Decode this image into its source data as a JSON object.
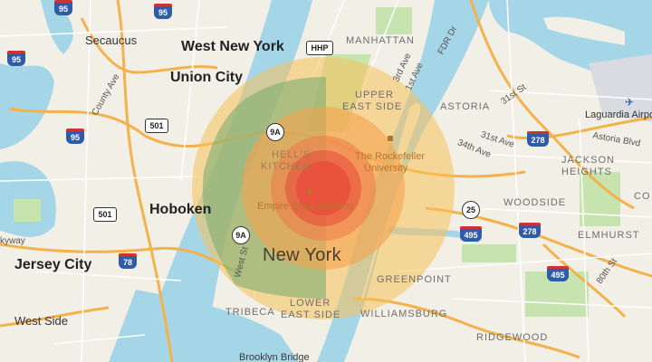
{
  "colors": {
    "water": "#a5d6e8",
    "land": "#f2efe6",
    "park": "#c6e3b0",
    "highway": "#f3b24a",
    "road": "#ffffff",
    "blast_fireball": "#e8483a",
    "blast_radiation": "#ef7a4a",
    "blast_pressure": "#f5a14f",
    "blast_thermal": "#f7c15a",
    "blast_light": "#7fae72"
  },
  "cities": [
    {
      "key": "west_new_york",
      "text": "West New York"
    },
    {
      "key": "union_city",
      "text": "Union City"
    },
    {
      "key": "hoboken",
      "text": "Hoboken"
    },
    {
      "key": "jersey_city",
      "text": "Jersey City"
    },
    {
      "key": "new_york",
      "text": "New York"
    }
  ],
  "towns": [
    {
      "key": "secaucus",
      "text": "Secaucus"
    },
    {
      "key": "west_side",
      "text": "West Side"
    },
    {
      "key": "laguardia",
      "text": "Laguardia Airport"
    }
  ],
  "neighborhoods": [
    {
      "key": "manhattan",
      "text": "MANHATTAN"
    },
    {
      "key": "upper_east_side_1",
      "text": "UPPER"
    },
    {
      "key": "upper_east_side_2",
      "text": "EAST SIDE"
    },
    {
      "key": "astoria",
      "text": "ASTORIA"
    },
    {
      "key": "jackson_heights_1",
      "text": "JACKSON"
    },
    {
      "key": "jackson_heights_2",
      "text": "HEIGHTS"
    },
    {
      "key": "woodside",
      "text": "WOODSIDE"
    },
    {
      "key": "elmhurst",
      "text": "ELMHURST"
    },
    {
      "key": "hells_kitchen_1",
      "text": "HELL'S"
    },
    {
      "key": "hells_kitchen_2",
      "text": "KITCHEN"
    },
    {
      "key": "tribeca",
      "text": "TRIBECA"
    },
    {
      "key": "lower_east_side_1",
      "text": "LOWER"
    },
    {
      "key": "lower_east_side_2",
      "text": "EAST SIDE"
    },
    {
      "key": "williamsburg",
      "text": "WILLIAMSBURG"
    },
    {
      "key": "greenpoint",
      "text": "GREENPOINT"
    },
    {
      "key": "ridgewood",
      "text": "RIDGEWOOD"
    },
    {
      "key": "corona",
      "text": "CO"
    }
  ],
  "pois": [
    {
      "key": "rockefeller_1",
      "text": "The Rockefeller"
    },
    {
      "key": "rockefeller_2",
      "text": "University"
    },
    {
      "key": "empire_state",
      "text": "Empire State Building"
    },
    {
      "key": "brooklyn_bridge",
      "text": "Brooklyn Bridge"
    }
  ],
  "roads": [
    {
      "key": "county_ave",
      "text": "County Ave"
    },
    {
      "key": "3rd_ave",
      "text": "3rd Ave"
    },
    {
      "key": "1st_ave",
      "text": "1st Ave"
    },
    {
      "key": "fdr",
      "text": "FDR Dr"
    },
    {
      "key": "31st_st",
      "text": "31st St"
    },
    {
      "key": "31st_ave",
      "text": "31st Ave"
    },
    {
      "key": "34th_ave",
      "text": "34th Ave"
    },
    {
      "key": "astoria_blvd",
      "text": "Astoria Blvd"
    },
    {
      "key": "80th_st",
      "text": "80th St"
    },
    {
      "key": "west_st",
      "text": "West St"
    },
    {
      "key": "skyway",
      "text": "kyway"
    }
  ],
  "shields": [
    {
      "key": "i95_top",
      "text": "95",
      "type": "i"
    },
    {
      "key": "i95_top2",
      "text": "95",
      "type": "i"
    },
    {
      "key": "i95_left",
      "text": "95",
      "type": "i"
    },
    {
      "key": "i95_mid",
      "text": "95",
      "type": "i"
    },
    {
      "key": "i278_a",
      "text": "278",
      "type": "i"
    },
    {
      "key": "i278_b",
      "text": "278",
      "type": "i"
    },
    {
      "key": "i495_a",
      "text": "495",
      "type": "i"
    },
    {
      "key": "i495_b",
      "text": "495",
      "type": "i"
    },
    {
      "key": "i78",
      "text": "78",
      "type": "i"
    },
    {
      "key": "us501_a",
      "text": "501",
      "type": "us"
    },
    {
      "key": "us501_b",
      "text": "501",
      "type": "us"
    },
    {
      "key": "st9a_a",
      "text": "9A",
      "type": "st"
    },
    {
      "key": "st9a_b",
      "text": "9A",
      "type": "st"
    },
    {
      "key": "st25",
      "text": "25",
      "type": "st"
    },
    {
      "key": "hhp",
      "text": "HHP",
      "type": "us"
    }
  ]
}
